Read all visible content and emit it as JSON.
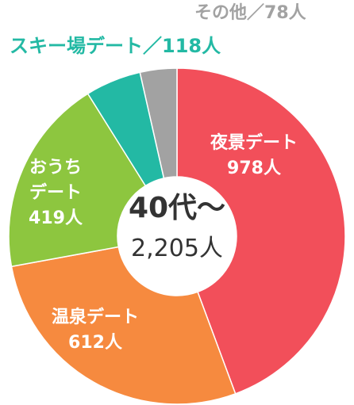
{
  "chart_data": {
    "type": "donut",
    "title": "40代〜",
    "center_text": "2,205人",
    "categories": [
      "夜景デート",
      "温泉デート",
      "おうちデート",
      "スキー場デート",
      "その他"
    ],
    "values": [
      978,
      612,
      419,
      118,
      78
    ],
    "value_labels": [
      "978人",
      "612人",
      "419人",
      "118人",
      "78人"
    ],
    "colors": [
      "#f24f5a",
      "#f68a3f",
      "#8dc63f",
      "#23b9a4",
      "#a2a2a2"
    ],
    "label_separator": "／"
  }
}
